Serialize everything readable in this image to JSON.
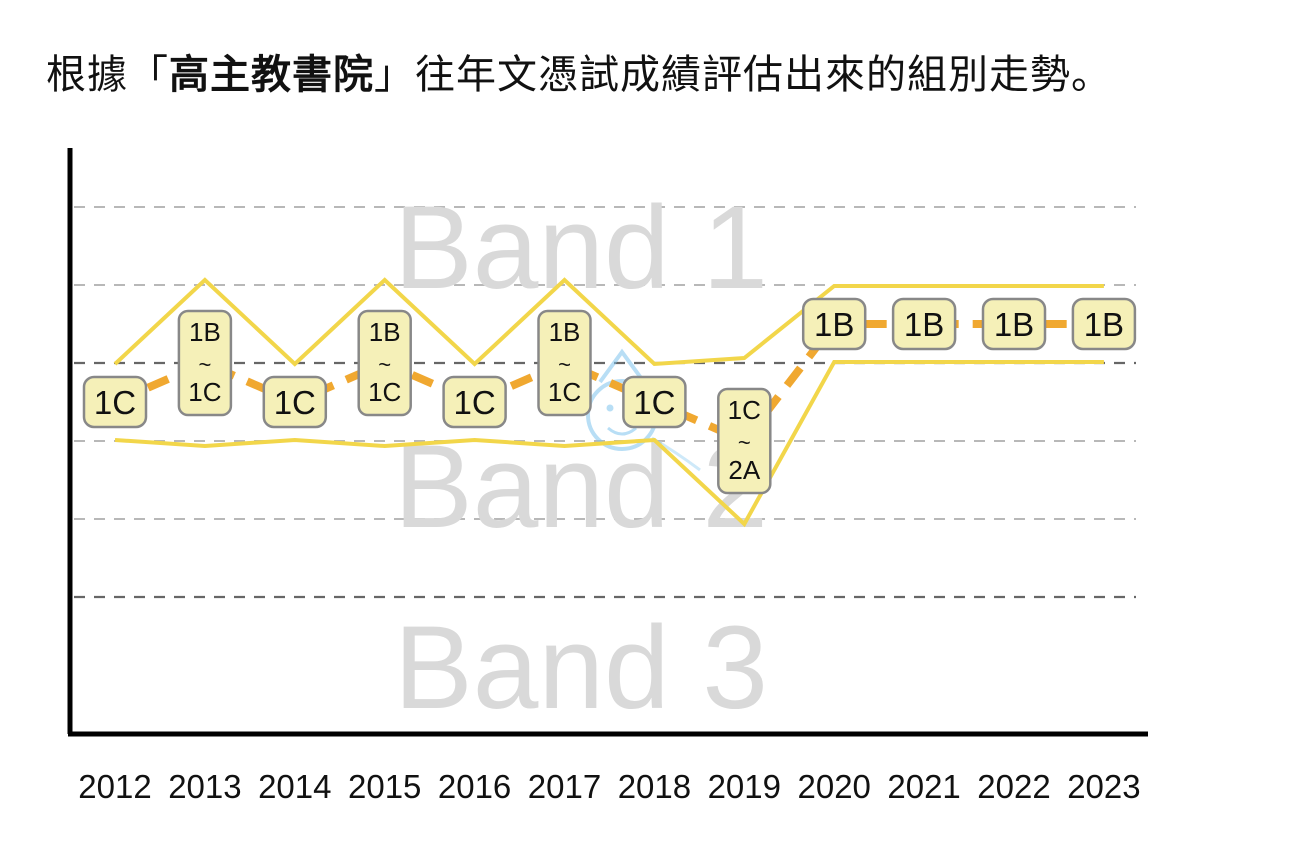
{
  "title": {
    "prefix": "根據「",
    "school": "高主教書院",
    "suffix": "」往年文憑試成績評估出來的組別走勢。"
  },
  "chart_data": {
    "type": "line",
    "title": "根據「高主教書院」往年文憑試成績評估出來的組別走勢。",
    "categories": [
      "2012",
      "2013",
      "2014",
      "2015",
      "2016",
      "2017",
      "2018",
      "2019",
      "2020",
      "2021",
      "2022",
      "2023"
    ],
    "bands": [
      "Band 1",
      "Band 2",
      "Band 3"
    ],
    "series": [
      {
        "values": [
          "1C",
          "1B~1C",
          "1C",
          "1B~1C",
          "1C",
          "1B~1C",
          "1C",
          "1C~2A",
          "1B",
          "1B",
          "1B",
          "1B"
        ]
      }
    ],
    "colors": {
      "trend": "#f0a830",
      "envelope": "#f2d64a",
      "tag_fill": "#f5f0b8",
      "tag_border": "#888888",
      "grid": "#9a9a9a"
    },
    "grid": true
  }
}
